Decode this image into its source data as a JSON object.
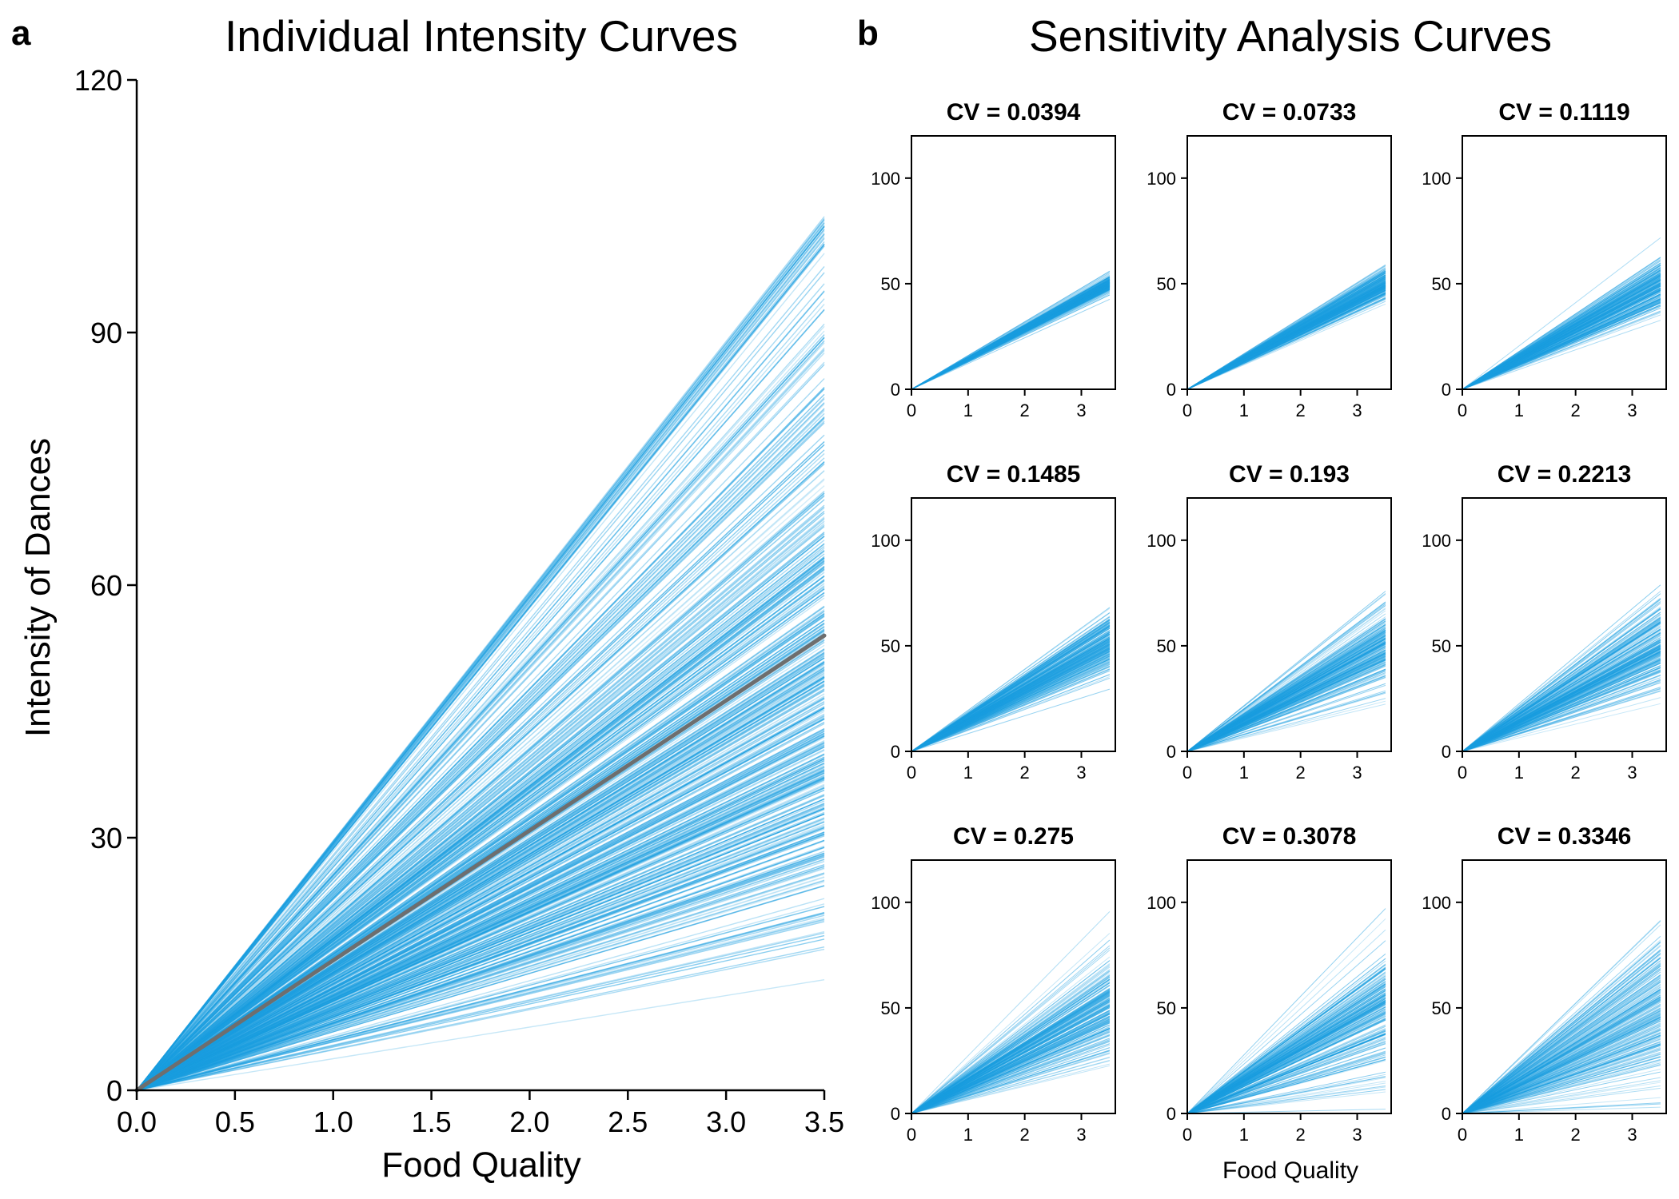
{
  "colors": {
    "curve": "#1a9ee0",
    "mean": "#6e6e6e",
    "frame": "#000000"
  },
  "chart_data": [
    {
      "panel": "a",
      "type": "line",
      "title": "Individual Intensity Curves",
      "xlabel": "Food Quality",
      "ylabel": "Intensity of Dances",
      "xlim": [
        0,
        3.5
      ],
      "ylim": [
        0,
        120
      ],
      "xticks": [
        "0.0",
        "0.5",
        "1.0",
        "1.5",
        "2.0",
        "2.5",
        "3.0",
        "3.5"
      ],
      "yticks": [
        "0",
        "30",
        "60",
        "90",
        "120"
      ],
      "curve_count": 500,
      "end_value_at_x3_5_range": [
        5,
        104
      ],
      "mean_curve_end_value": 54,
      "mean_curve_slope": 15.43
    },
    {
      "panel": "b",
      "type": "line",
      "title": "Sensitivity Analysis Curves",
      "xlabel": "Food Quality",
      "xlim": [
        0,
        3.6
      ],
      "ylim": [
        0,
        120
      ],
      "xticks": [
        "0",
        "1",
        "2",
        "3"
      ],
      "yticks": [
        "0",
        "50",
        "100"
      ],
      "curve_count_per_panel": 200,
      "mean_end_value": 50,
      "panels": [
        {
          "title": "CV = 0.0394",
          "cv": 0.0394
        },
        {
          "title": "CV = 0.0733",
          "cv": 0.0733
        },
        {
          "title": "CV = 0.1119",
          "cv": 0.1119
        },
        {
          "title": "CV = 0.1485",
          "cv": 0.1485
        },
        {
          "title": "CV = 0.193",
          "cv": 0.193
        },
        {
          "title": "CV = 0.2213",
          "cv": 0.2213
        },
        {
          "title": "CV = 0.275",
          "cv": 0.275
        },
        {
          "title": "CV = 0.3078",
          "cv": 0.3078
        },
        {
          "title": "CV = 0.3346",
          "cv": 0.3346
        }
      ]
    }
  ]
}
